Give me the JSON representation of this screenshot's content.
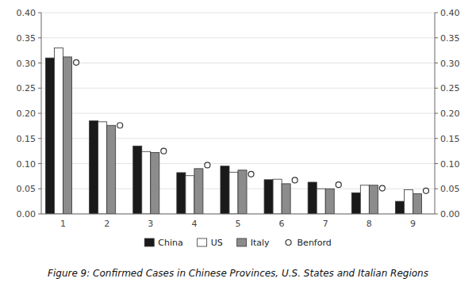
{
  "chart_data": {
    "type": "bar",
    "title": "Figure 9: Confirmed Cases in Chinese Provinces, U.S. States and Italian Regions",
    "categories": [
      1,
      2,
      3,
      4,
      5,
      6,
      7,
      8,
      9
    ],
    "series": [
      {
        "name": "China",
        "type": "bar",
        "color": "#1a1a1a",
        "values": [
          0.31,
          0.185,
          0.135,
          0.082,
          0.095,
          0.068,
          0.063,
          0.042,
          0.025
        ]
      },
      {
        "name": "US",
        "type": "bar",
        "color": "#ffffff",
        "values": [
          0.33,
          0.183,
          0.124,
          0.076,
          0.083,
          0.069,
          0.05,
          0.057,
          0.048
        ]
      },
      {
        "name": "Italy",
        "type": "bar",
        "color": "#8c8c8c",
        "values": [
          0.312,
          0.176,
          0.122,
          0.09,
          0.087,
          0.06,
          0.05,
          0.057,
          0.04
        ]
      },
      {
        "name": "Benford",
        "type": "scatter",
        "marker": "circle",
        "color": "#ffffff",
        "values": [
          0.301,
          0.176,
          0.125,
          0.097,
          0.079,
          0.067,
          0.058,
          0.051,
          0.046
        ]
      }
    ],
    "ylim": [
      0,
      0.4
    ],
    "yticks": [
      {
        "value": 0,
        "label": "0.00"
      },
      0.05,
      {
        "value": 0.1,
        "label": "0.10"
      },
      0.15,
      {
        "value": 0.2,
        "label": "0.20"
      },
      0.25,
      {
        "value": 0.3,
        "label": "0.30"
      },
      0.35,
      {
        "value": 0.4,
        "label": "0.40"
      }
    ],
    "y2lim": [
      0,
      0.4
    ],
    "y2ticks": [
      {
        "value": 0,
        "label": "0.00"
      },
      0.05,
      {
        "value": 0.1,
        "label": "0.10"
      },
      0.15,
      {
        "value": 0.2,
        "label": "0.20"
      },
      0.25,
      {
        "value": 0.3,
        "label": "0.30"
      },
      0.35,
      {
        "value": 0.4,
        "label": "0.40"
      }
    ],
    "grid": true,
    "legend": "bottom"
  }
}
